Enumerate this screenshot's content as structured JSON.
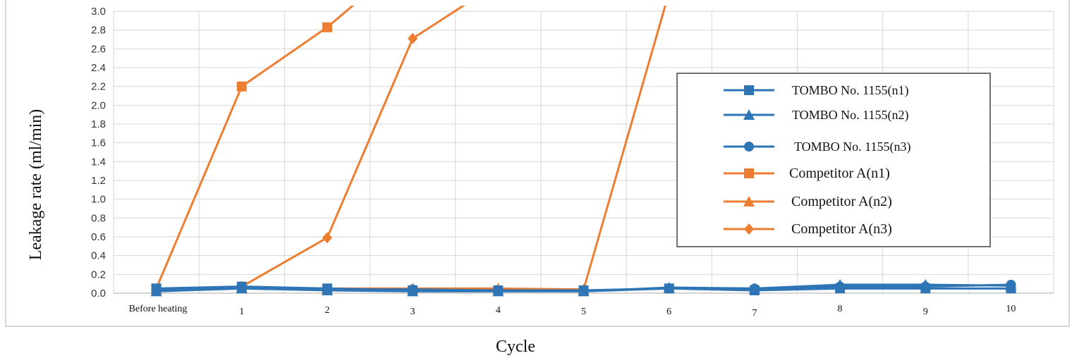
{
  "chart_data": {
    "type": "line",
    "title": "",
    "xlabel": "Cycle",
    "ylabel": "Leakage rate (ml/min)",
    "categories": [
      "Before heating",
      "1",
      "2",
      "3",
      "4",
      "5",
      "6",
      "7",
      "8",
      "9",
      "10"
    ],
    "ylim": [
      0,
      3.0
    ],
    "yticks": [
      "0.0",
      "0.2",
      "0.4",
      "0.6",
      "0.8",
      "1.0",
      "1.2",
      "1.4",
      "1.6",
      "1.8",
      "2.0",
      "2.2",
      "2.4",
      "2.6",
      "2.8",
      "3.0"
    ],
    "grid": true,
    "legend_position": "right",
    "series": [
      {
        "name": "TOMBO No. 1155(n1)",
        "marker": "square",
        "color": "#2e75b6",
        "values": [
          0.05,
          0.07,
          0.05,
          0.03,
          0.03,
          0.03,
          0.05,
          0.03,
          0.05,
          0.05,
          0.05
        ]
      },
      {
        "name": "TOMBO No. 1155(n2)",
        "marker": "triangle",
        "color": "#2e75b6",
        "values": [
          0.02,
          0.05,
          0.03,
          0.02,
          0.02,
          0.02,
          0.06,
          0.05,
          0.09,
          0.09,
          0.08
        ]
      },
      {
        "name": "TOMBO No. 1155(n3)",
        "marker": "circle",
        "color": "#2e75b6",
        "values": [
          0.04,
          0.07,
          0.04,
          0.04,
          0.03,
          0.02,
          0.05,
          0.05,
          0.07,
          0.07,
          0.09
        ]
      },
      {
        "name": "Competitor A(n1)",
        "marker": "square",
        "color": "#ed7d31",
        "values": [
          0.05,
          2.2,
          2.83,
          3.6,
          null,
          null,
          null,
          null,
          null,
          null,
          null
        ]
      },
      {
        "name": "Competitor A(n2)",
        "marker": "triangle",
        "color": "#ed7d31",
        "values": [
          0.04,
          0.06,
          0.05,
          0.05,
          0.05,
          0.04,
          3.2,
          null,
          null,
          null,
          null
        ]
      },
      {
        "name": "Competitor A(n3)",
        "marker": "diamond",
        "color": "#ed7d31",
        "values": [
          0.03,
          0.07,
          0.59,
          2.71,
          3.3,
          null,
          null,
          null,
          null,
          null,
          null
        ]
      }
    ]
  }
}
